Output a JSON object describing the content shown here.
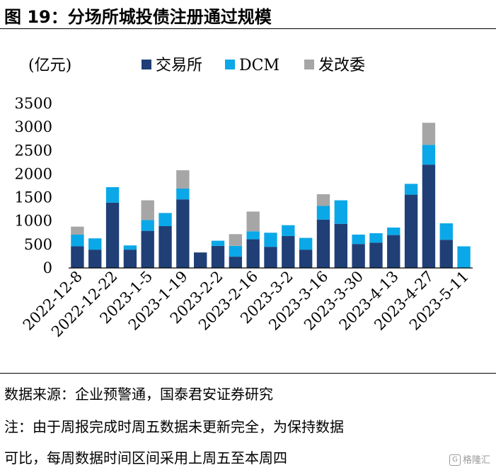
{
  "title": "图 19：分场所城投债注册通过规模",
  "chart_data": {
    "type": "bar",
    "stacked": true,
    "ylabel": "(亿元)",
    "ylim": [
      0,
      3500
    ],
    "yticks": [
      0,
      500,
      1000,
      1500,
      2000,
      2500,
      3000,
      3500
    ],
    "legend_position": "top",
    "x_tick_labels": [
      "2022-12-8",
      "2022-12-22",
      "2023-1-5",
      "2023-1-19",
      "2023-2-2",
      "2023-2-16",
      "2023-3-2",
      "2023-3-16",
      "2023-3-30",
      "2023-4-13",
      "2023-4-27",
      "2023-5-11"
    ],
    "series": [
      {
        "name": "交易所",
        "color": "#1f3f76",
        "values": [
          460,
          390,
          1390,
          390,
          790,
          890,
          1460,
          330,
          470,
          240,
          610,
          450,
          680,
          390,
          1030,
          940,
          510,
          540,
          700,
          1560,
          2200,
          600,
          0
        ]
      },
      {
        "name": "DCM",
        "color": "#0aa8e8",
        "values": [
          250,
          240,
          330,
          90,
          230,
          280,
          230,
          0,
          110,
          230,
          170,
          300,
          230,
          250,
          290,
          500,
          200,
          200,
          160,
          230,
          420,
          350,
          460
        ]
      },
      {
        "name": "发改委",
        "color": "#a6a6a6",
        "values": [
          170,
          0,
          0,
          0,
          420,
          0,
          390,
          0,
          0,
          250,
          420,
          0,
          0,
          0,
          250,
          0,
          0,
          0,
          0,
          0,
          470,
          0,
          0
        ]
      }
    ]
  },
  "footer": {
    "source": "数据来源：企业预警通，国泰君安证券研究",
    "note_line1": "注：由于周报完成时周五数据未更新完全，为保持数据",
    "note_line2": "可比，每周数据时间区间采用上周五至本周四"
  },
  "watermark": {
    "logo": "G",
    "text": "格隆汇"
  }
}
